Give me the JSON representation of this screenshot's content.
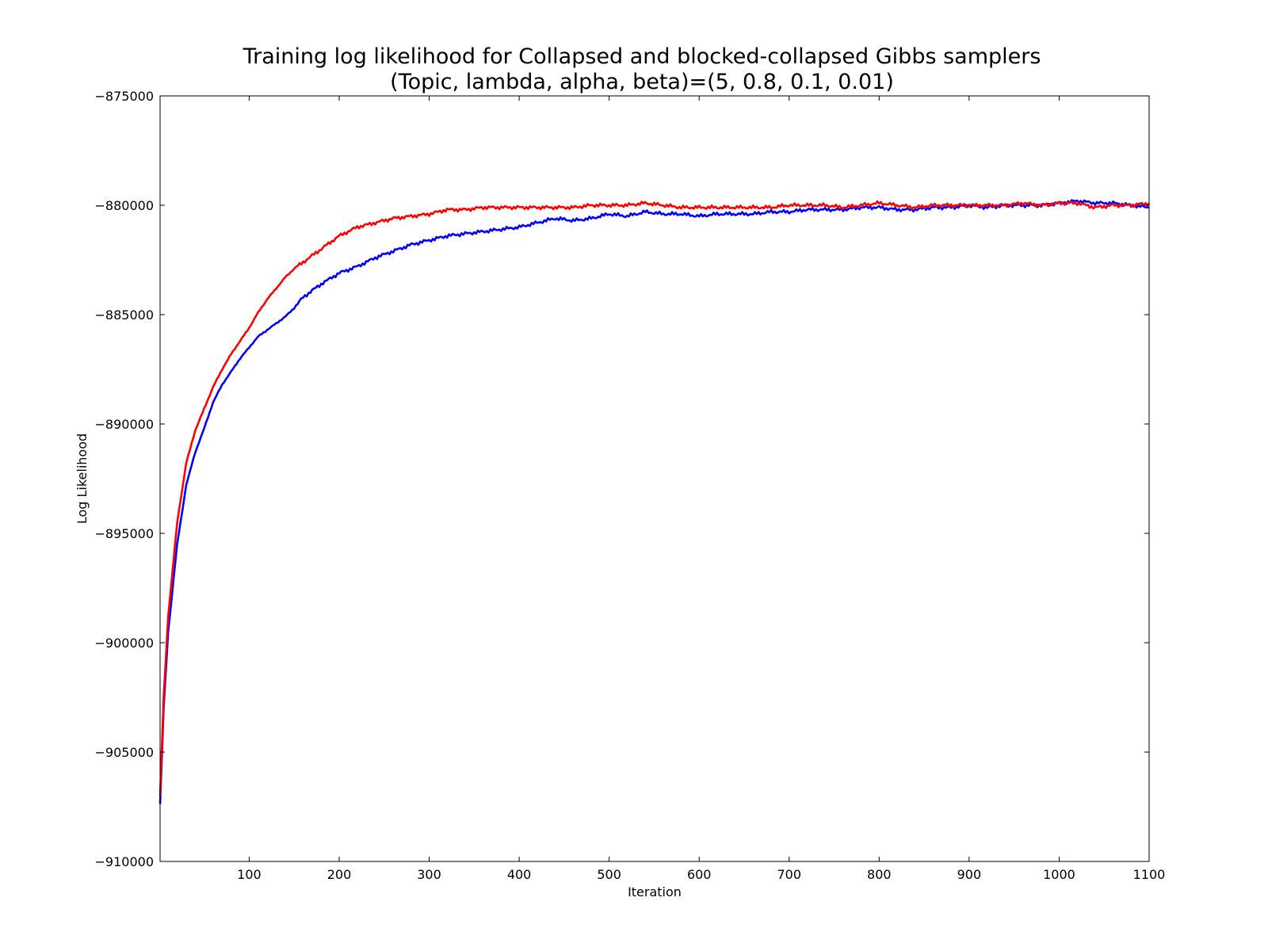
{
  "chart_data": {
    "type": "line",
    "title": "Training log likelihood for Collapsed and blocked-collapsed Gibbs samplers",
    "subtitle": "(Topic, lambda, alpha, beta)=(5, 0.8, 0.1, 0.01)",
    "xlabel": "Iteration",
    "ylabel": "Log Likelihood",
    "xlim": [
      1,
      1100
    ],
    "ylim": [
      -910000,
      -875000
    ],
    "xticks": [
      100,
      200,
      300,
      400,
      500,
      600,
      700,
      800,
      900,
      1000,
      1100
    ],
    "xtick_labels": [
      "100",
      "200",
      "300",
      "400",
      "500",
      "600",
      "700",
      "800",
      "900",
      "1000",
      "1100"
    ],
    "yticks": [
      -875000,
      -880000,
      -885000,
      -890000,
      -895000,
      -900000,
      -905000,
      -910000
    ],
    "ytick_labels": [
      "−875000",
      "−880000",
      "−885000",
      "−890000",
      "−895000",
      "−900000",
      "−905000",
      "−910000"
    ],
    "grid": false,
    "legend": "none",
    "series": [
      {
        "color": "#0000ff",
        "x": [
          1,
          5,
          10,
          20,
          30,
          40,
          50,
          60,
          70,
          80,
          90,
          100,
          110,
          120,
          130,
          140,
          150,
          160,
          180,
          200,
          220,
          240,
          260,
          280,
          300,
          320,
          340,
          360,
          380,
          400,
          420,
          440,
          460,
          480,
          500,
          520,
          540,
          560,
          580,
          600,
          620,
          640,
          660,
          680,
          700,
          720,
          740,
          760,
          780,
          800,
          820,
          840,
          860,
          880,
          900,
          920,
          940,
          960,
          980,
          1000,
          1020,
          1040,
          1060,
          1080,
          1100
        ],
        "y": [
          -907400,
          -903000,
          -899500,
          -895500,
          -892800,
          -891300,
          -890200,
          -889000,
          -888200,
          -887600,
          -887000,
          -886500,
          -886000,
          -885700,
          -885400,
          -885100,
          -884700,
          -884200,
          -883600,
          -883100,
          -882800,
          -882400,
          -882100,
          -881800,
          -881600,
          -881400,
          -881300,
          -881200,
          -881100,
          -881000,
          -880800,
          -880600,
          -880700,
          -880600,
          -880400,
          -880500,
          -880300,
          -880400,
          -880400,
          -880500,
          -880400,
          -880400,
          -880400,
          -880300,
          -880300,
          -880200,
          -880200,
          -880200,
          -880100,
          -880100,
          -880200,
          -880200,
          -880100,
          -880100,
          -880000,
          -880100,
          -880000,
          -880000,
          -880000,
          -879900,
          -879800,
          -879900,
          -879900,
          -880000,
          -880100
        ]
      },
      {
        "color": "#ff0000",
        "x": [
          1,
          5,
          10,
          20,
          30,
          40,
          50,
          60,
          70,
          80,
          90,
          100,
          110,
          120,
          130,
          140,
          150,
          160,
          180,
          200,
          220,
          240,
          260,
          280,
          300,
          320,
          340,
          360,
          380,
          400,
          420,
          440,
          460,
          480,
          500,
          520,
          540,
          560,
          580,
          600,
          620,
          640,
          660,
          680,
          700,
          720,
          740,
          760,
          780,
          800,
          820,
          840,
          860,
          880,
          900,
          920,
          940,
          960,
          980,
          1000,
          1020,
          1040,
          1060,
          1080,
          1100
        ],
        "y": [
          -907000,
          -902500,
          -898800,
          -894500,
          -891800,
          -890300,
          -889300,
          -888300,
          -887500,
          -886800,
          -886200,
          -885600,
          -884900,
          -884300,
          -883800,
          -883300,
          -882900,
          -882600,
          -882000,
          -881400,
          -881000,
          -880800,
          -880600,
          -880500,
          -880400,
          -880200,
          -880200,
          -880100,
          -880100,
          -880100,
          -880100,
          -880100,
          -880100,
          -880000,
          -880000,
          -880000,
          -879900,
          -880000,
          -880100,
          -880100,
          -880100,
          -880100,
          -880100,
          -880100,
          -880000,
          -880000,
          -880000,
          -880100,
          -880000,
          -879900,
          -880000,
          -880100,
          -880000,
          -880000,
          -880000,
          -880000,
          -880000,
          -879900,
          -880000,
          -879900,
          -879900,
          -880100,
          -880000,
          -880000,
          -879900
        ]
      }
    ]
  }
}
